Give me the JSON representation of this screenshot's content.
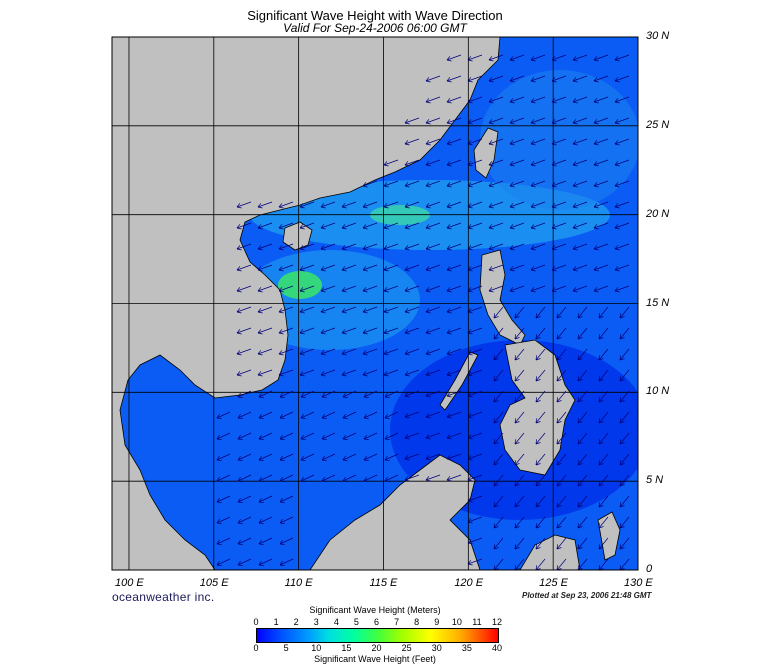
{
  "header": {
    "title": "Significant Wave Height with Wave Direction",
    "subtitle": "Valid For Sep-24-2006 06:00 GMT"
  },
  "map": {
    "lon_labels": [
      "100 E",
      "105 E",
      "110 E",
      "115 E",
      "120 E",
      "125 E",
      "130 E"
    ],
    "lat_labels": [
      "30 N",
      "25 N",
      "20 N",
      "15 N",
      "10 N",
      "5 N",
      "0"
    ],
    "lon_range": [
      99,
      130
    ],
    "lat_range": [
      0,
      30
    ],
    "colors": {
      "land": "#c0c0c0",
      "sea": "#0a5cf5",
      "grid": "#000000",
      "arrow": "#00007a"
    },
    "prevailing_direction": "from north-east"
  },
  "footer": {
    "brand": "oceanweather inc.",
    "plotted": "Plotted at Sep 23, 2006 21:48 GMT"
  },
  "colorbar": {
    "title_meters": "Significant Wave Height (Meters)",
    "title_feet": "Significant Wave Height (Feet)",
    "meters_ticks": [
      "0",
      "1",
      "2",
      "3",
      "4",
      "5",
      "6",
      "7",
      "8",
      "9",
      "10",
      "11",
      "12"
    ],
    "feet_ticks": [
      "0",
      "5",
      "10",
      "15",
      "20",
      "25",
      "30",
      "35",
      "40"
    ]
  }
}
